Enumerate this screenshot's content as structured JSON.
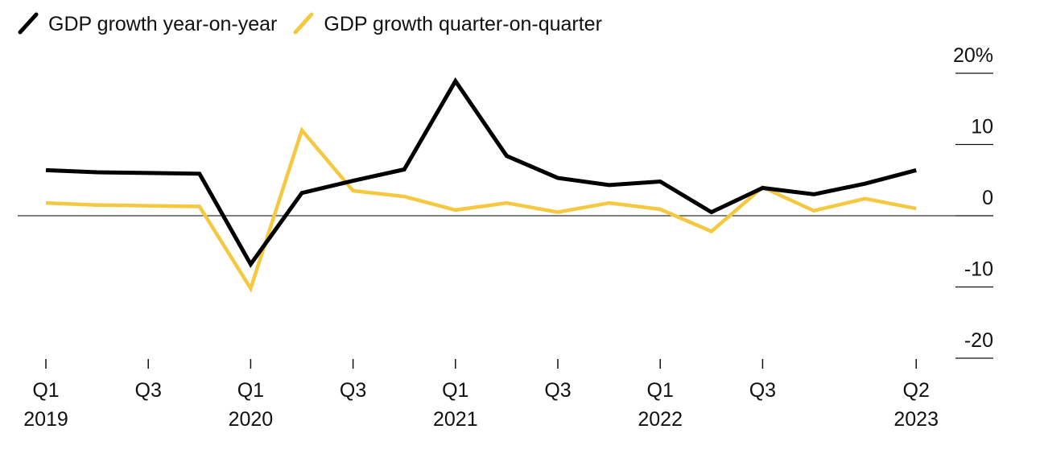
{
  "chart_data": {
    "type": "line",
    "title": "",
    "xlabel": "",
    "ylabel": "",
    "ylim": [
      -20,
      20
    ],
    "y_ticks": [
      20,
      10,
      0,
      -10,
      -20
    ],
    "y_tick_labels": [
      "20%",
      "10",
      "0",
      "-10",
      "-20"
    ],
    "categories": [
      "Q1 2019",
      "Q2 2019",
      "Q3 2019",
      "Q4 2019",
      "Q1 2020",
      "Q2 2020",
      "Q3 2020",
      "Q4 2020",
      "Q1 2021",
      "Q2 2021",
      "Q3 2021",
      "Q4 2021",
      "Q1 2022",
      "Q2 2022",
      "Q3 2022",
      "Q4 2022",
      "Q1 2023",
      "Q2 2023"
    ],
    "x_ticks": [
      {
        "index": 0,
        "line1": "Q1",
        "line2": "2019"
      },
      {
        "index": 2,
        "line1": "Q3",
        "line2": ""
      },
      {
        "index": 4,
        "line1": "Q1",
        "line2": "2020"
      },
      {
        "index": 6,
        "line1": "Q3",
        "line2": ""
      },
      {
        "index": 8,
        "line1": "Q1",
        "line2": "2021"
      },
      {
        "index": 10,
        "line1": "Q3",
        "line2": ""
      },
      {
        "index": 12,
        "line1": "Q1",
        "line2": "2022"
      },
      {
        "index": 14,
        "line1": "Q3",
        "line2": ""
      },
      {
        "index": 17,
        "line1": "Q2",
        "line2": "2023"
      }
    ],
    "series": [
      {
        "name": "GDP growth year-on-year",
        "color": "#000000",
        "values": [
          6.4,
          6.1,
          6.0,
          5.9,
          -6.8,
          3.2,
          4.9,
          6.5,
          18.9,
          8.4,
          5.3,
          4.3,
          4.8,
          0.5,
          3.9,
          3.0,
          4.5,
          6.4
        ]
      },
      {
        "name": "GDP growth quarter-on-quarter",
        "color": "#F5C842",
        "values": [
          1.8,
          1.5,
          1.4,
          1.3,
          -10.2,
          12.0,
          3.5,
          2.7,
          0.8,
          1.8,
          0.5,
          1.8,
          0.9,
          -2.2,
          4.0,
          0.7,
          2.4,
          1.0
        ]
      }
    ]
  }
}
